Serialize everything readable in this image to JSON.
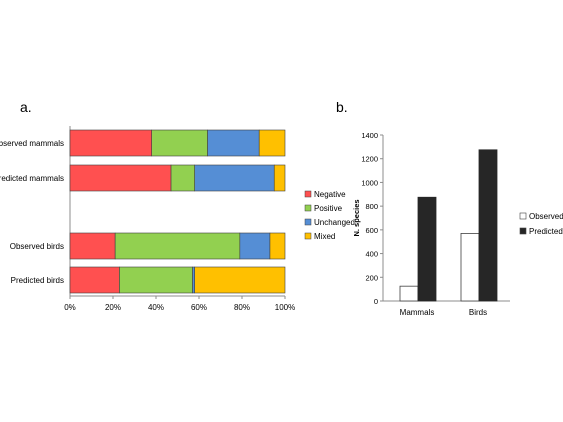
{
  "panels": {
    "a": "a.",
    "b": "b."
  },
  "chart_data": [
    {
      "type": "bar",
      "orientation": "horizontal",
      "stacked": "percent",
      "categories": [
        "Observed mammals",
        "Predicted mammals",
        "Observed birds",
        "Predicted birds"
      ],
      "series": [
        {
          "name": "Negative",
          "color": "#ff5050",
          "values": [
            38,
            47,
            21,
            23
          ]
        },
        {
          "name": "Positive",
          "color": "#92d050",
          "values": [
            26,
            11,
            58,
            34
          ]
        },
        {
          "name": "Unchanged",
          "color": "#558ed5",
          "values": [
            24,
            37,
            14,
            1
          ]
        },
        {
          "name": "Mixed",
          "color": "#ffc000",
          "values": [
            12,
            5,
            7,
            42
          ]
        }
      ],
      "xlim": [
        0,
        100
      ],
      "xticks": [
        "0%",
        "20%",
        "40%",
        "60%",
        "80%",
        "100%"
      ],
      "legend": "right",
      "grid": false
    },
    {
      "type": "bar",
      "categories": [
        "Mammals",
        "Birds"
      ],
      "series": [
        {
          "name": "Observed",
          "color": "#ffffff",
          "values": [
            125,
            570
          ]
        },
        {
          "name": "Predicted",
          "color": "#262626",
          "values": [
            875,
            1275
          ]
        }
      ],
      "ylabel": "N. species",
      "ylim": [
        0,
        1400
      ],
      "yticks": [
        "0",
        "200",
        "400",
        "600",
        "800",
        "1000",
        "1200",
        "1400"
      ],
      "legend": "right",
      "grid": false
    }
  ]
}
